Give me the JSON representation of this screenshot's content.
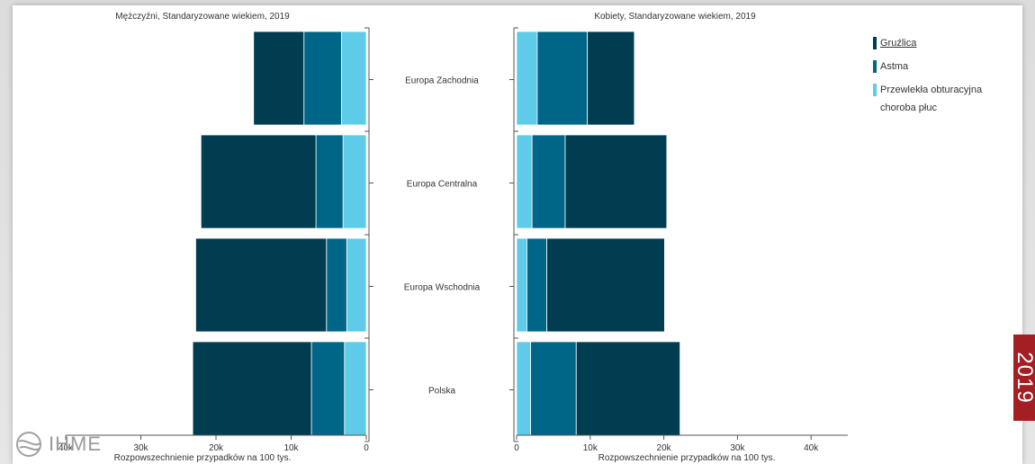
{
  "chart_data": {
    "type": "bar",
    "orientation": "horizontal",
    "stacked": true,
    "categories": [
      "Europa Zachodnia",
      "Europa Centralna",
      "Europa Wschodnia",
      "Polska"
    ],
    "panels": [
      {
        "title": "Mężczyźni, Standaryzowane wiekiem, 2019",
        "xlabel": "Rozpowszechnienie przypadków na 100 tys.",
        "direction": "reversed",
        "xlim": [
          0,
          40000
        ],
        "ticks": [
          0,
          10000,
          20000,
          30000,
          40000
        ],
        "tick_labels": [
          "0",
          "10k",
          "20k",
          "30k",
          "40k"
        ],
        "series": [
          {
            "name": "Przewlekła obturacyjna choroba płuc",
            "values": [
              3300,
              3100,
              2600,
              2900
            ]
          },
          {
            "name": "Astma",
            "values": [
              5000,
              3600,
              2700,
              4400
            ]
          },
          {
            "name": "Gruźlica",
            "values": [
              6700,
              15300,
              17400,
              15800
            ]
          }
        ]
      },
      {
        "title": "Kobiety, Standaryzowane wiekiem, 2019",
        "xlabel": "Rozpowszechnienie przypadków na 100 tys.",
        "direction": "normal",
        "xlim": [
          0,
          45000
        ],
        "ticks": [
          0,
          10000,
          20000,
          30000,
          40000
        ],
        "tick_labels": [
          "0",
          "10k",
          "20k",
          "30k",
          "40k"
        ],
        "series": [
          {
            "name": "Przewlekła obturacyjna choroba płuc",
            "values": [
              2800,
              2100,
              1400,
              1900
            ]
          },
          {
            "name": "Astma",
            "values": [
              6800,
              4500,
              2700,
              6200
            ]
          },
          {
            "name": "Gruźlica",
            "values": [
              6400,
              13800,
              16000,
              14100
            ]
          }
        ]
      }
    ],
    "colors": {
      "Gruźlica": "#003d51",
      "Astma": "#006688",
      "Przewlekła obturacyjna choroba płuc": "#5ecbe8"
    },
    "legend": {
      "position": "right",
      "items": [
        "Gruźlica",
        "Astma",
        "Przewlekła obturacyjna choroba płuc"
      ]
    },
    "grid": false
  },
  "badge": {
    "year": "2019"
  },
  "logo": {
    "text": "IHME"
  }
}
